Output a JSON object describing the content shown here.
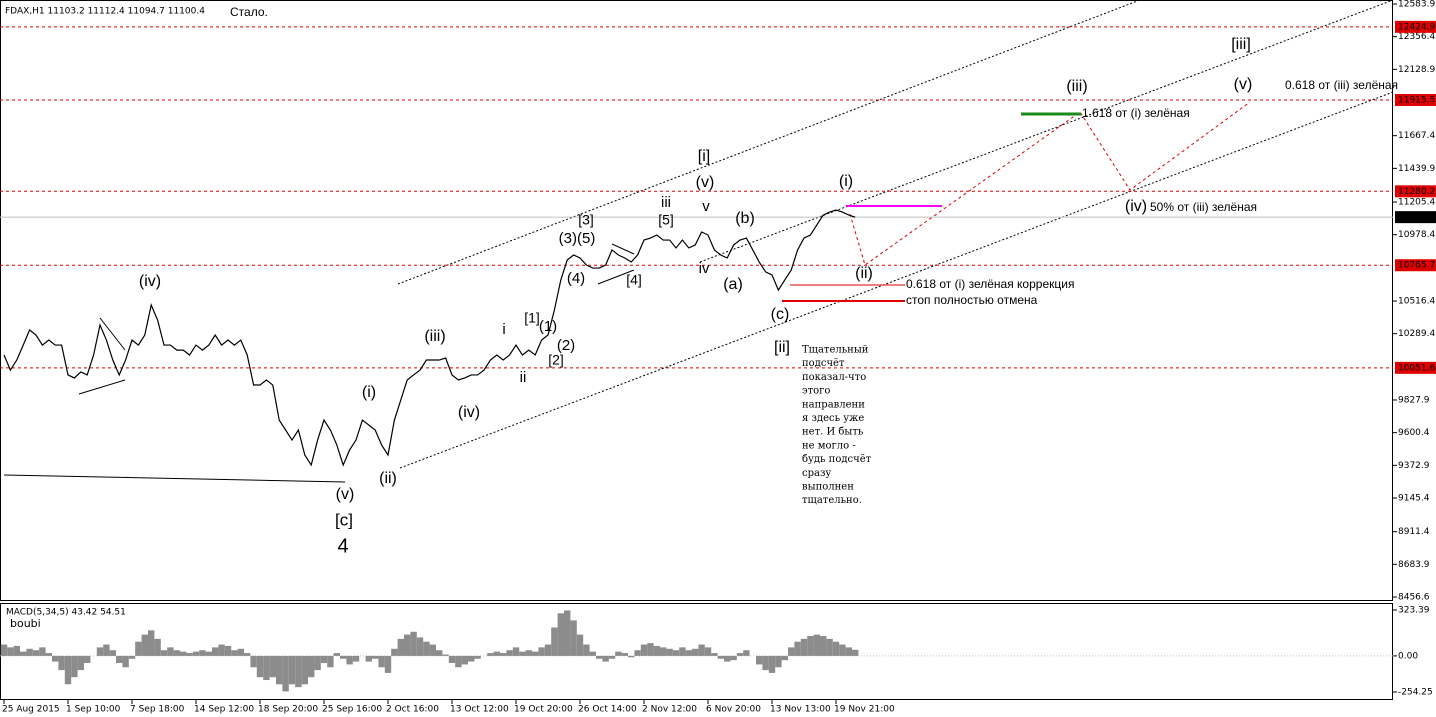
{
  "header": {
    "symbol": "FDAX,H1  11103.2 11112.4 11094.7 11100.4",
    "note": "Стало."
  },
  "chart_data": [
    {
      "type": "line",
      "color": "#000000",
      "categories": [
        "25 Aug 2015",
        null,
        null,
        null,
        null,
        null,
        null,
        null,
        null,
        null,
        "1 Sep 10:00",
        null,
        null,
        null,
        null,
        null,
        null,
        null,
        null,
        null,
        "7 Sep 18:00",
        null,
        null,
        null,
        null,
        null,
        null,
        null,
        null,
        null,
        "14 Sep 12:00",
        null,
        null,
        null,
        null,
        null,
        null,
        null,
        null,
        null,
        "18 Sep 20:00",
        null,
        null,
        null,
        null,
        null,
        null,
        null,
        null,
        null,
        "25 Sep 16:00",
        null,
        null,
        null,
        null,
        null,
        null,
        null,
        null,
        null,
        "2 Oct 16:00",
        null,
        null,
        null,
        null,
        null,
        null,
        null,
        null,
        null,
        "13 Oct 12:00",
        null,
        null,
        null,
        null,
        null,
        null,
        null,
        null,
        null,
        "19 Oct 20:00",
        null,
        null,
        null,
        null,
        null,
        null,
        null,
        null,
        null,
        "26 Oct 14:00",
        null,
        null,
        null,
        null,
        null,
        null,
        null,
        null,
        null,
        "2 Nov 12:00",
        null,
        null,
        null,
        null,
        null,
        null,
        null,
        null,
        null,
        "6 Nov 20:00",
        null,
        null,
        null,
        null,
        null,
        null,
        null,
        null,
        null,
        "13 Nov 13:00",
        null,
        null,
        null,
        null,
        null,
        null,
        null,
        null,
        null,
        "19 Nov 21:00",
        null,
        null,
        null
      ],
      "values": [
        10141,
        10036,
        10106,
        10210,
        10315,
        10280,
        10210,
        10245,
        10210,
        10210,
        10002,
        9981,
        10023,
        10002,
        10141,
        10350,
        10245,
        10106,
        10002,
        10106,
        10245,
        10210,
        10280,
        10489,
        10384,
        10210,
        10210,
        10175,
        10175,
        10141,
        10210,
        10175,
        10210,
        10280,
        10210,
        10245,
        10210,
        10245,
        10141,
        9932,
        9932,
        9967,
        9932,
        9688,
        9619,
        9549,
        9619,
        9445,
        9375,
        9549,
        9688,
        9619,
        9515,
        9375,
        9480,
        9549,
        9688,
        9654,
        9619,
        9515,
        9445,
        9688,
        9828,
        9967,
        10002,
        10036,
        10106,
        10106,
        10106,
        10120,
        10002,
        9967,
        9981,
        10002,
        10002,
        10036,
        10106,
        10141,
        10106,
        10141,
        10210,
        10141,
        10175,
        10141,
        10245,
        10280,
        10454,
        10663,
        10802,
        10837,
        10816,
        10767,
        10746,
        10746,
        10767,
        10872,
        10837,
        10816,
        10788,
        10837,
        10941,
        10955,
        10976,
        10941,
        10941,
        10886,
        10941,
        10886,
        10906,
        10997,
        10976,
        10872,
        10837,
        10816,
        10906,
        10941,
        10955,
        10872,
        10788,
        10719,
        10698,
        10593,
        10663,
        10732,
        10872,
        10955,
        10976,
        11046,
        11115,
        11136,
        11150,
        11136,
        11115,
        11100.4
      ],
      "ylim": [
        8428.8,
        12611.7
      ],
      "yticks": [
        12583.9,
        12356.4,
        12128.9,
        11667.4,
        11439.9,
        11205.4,
        10978.4,
        10516.4,
        10289.4,
        9827.9,
        9600.4,
        9372.9,
        9145.4,
        8911.4,
        8683.9,
        8456.6
      ],
      "levels": [
        12424.9,
        11915.5,
        11280.2,
        10765.7,
        10051.6
      ],
      "level_color": "#e00000",
      "current_price": 11100.4,
      "annotations": [
        {
          "text": "(iv)",
          "color": "#1a8a1a"
        },
        {
          "text": "(i)",
          "color": "#1a8a1a"
        },
        {
          "text": "(iii)",
          "color": "#1a8a1a"
        },
        {
          "text": "(iv)",
          "color": "#1a8a1a"
        },
        {
          "text": "(v)",
          "color": "#1a8a1a"
        },
        {
          "text": "[c]",
          "color": "#e00000"
        },
        {
          "text": "4",
          "color": "#0000cc"
        },
        {
          "text": "(ii)",
          "color": "#1a8a1a"
        },
        {
          "text": "i",
          "color": "#0000cc"
        },
        {
          "text": "ii",
          "color": "#0000cc"
        },
        {
          "text": "[1]",
          "color": "#e00000"
        },
        {
          "text": "(1)",
          "color": "#1a8a1a"
        },
        {
          "text": "(2)",
          "color": "#1a8a1a"
        },
        {
          "text": "[2]",
          "color": "#e00000"
        },
        {
          "text": "(3)(5)",
          "color": "#1a8a1a"
        },
        {
          "text": "[3]",
          "color": "#e00000"
        },
        {
          "text": "(4)",
          "color": "#1a8a1a"
        },
        {
          "text": "[4]",
          "color": "#e00000"
        },
        {
          "text": "iii",
          "color": "#0000cc"
        },
        {
          "text": "[5]",
          "color": "#e00000"
        },
        {
          "text": "[i]",
          "color": "#e00000"
        },
        {
          "text": "(v)",
          "color": "#1a8a1a"
        },
        {
          "text": "v",
          "color": "#0000cc"
        },
        {
          "text": "iv",
          "color": "#0000cc"
        },
        {
          "text": "(b)",
          "color": "#1a8a1a"
        },
        {
          "text": "(a)",
          "color": "#1a8a1a"
        },
        {
          "text": "(c)",
          "color": "#1a8a1a"
        },
        {
          "text": "[ii]",
          "color": "#e00000"
        },
        {
          "text": "(i)",
          "color": "#1a8a1a"
        },
        {
          "text": "(ii)",
          "color": "#1a8a1a"
        },
        {
          "text": "(iii)",
          "color": "#1a8a1a"
        },
        {
          "text": "[iii]",
          "color": "#e00000"
        },
        {
          "text": "(v)",
          "color": "#1a8a1a"
        },
        {
          "text": "0.618 от (iii) зелёная",
          "color": "#000000"
        },
        {
          "text": "1.618 от (i) зелёная",
          "color": "#000000"
        },
        {
          "text": "(iv)",
          "color": "#1a8a1a"
        },
        {
          "text": "50% от (iii) зелёная",
          "color": "#000000"
        },
        {
          "text": "0.618 от (i) зелёная коррекция",
          "color": "#000000"
        },
        {
          "text": "стоп полностью отмена",
          "color": "#000000"
        }
      ],
      "comment": [
        "Тщательный",
        "подсчёт",
        "показал-что",
        "этого",
        "направлени",
        "я здесь уже",
        "нет. И быть",
        "не могло -",
        "будь подсчёт",
        "сразу",
        "выполнен",
        "тщательно."
      ]
    },
    {
      "type": "bar",
      "title": "MACD(5,34,5) 43.42 54.51",
      "subtitle": "boubi",
      "color": "#8c8c8c",
      "values": [
        80,
        60,
        70,
        30,
        50,
        40,
        60,
        20,
        -40,
        -100,
        -200,
        -150,
        -100,
        -50,
        0,
        60,
        80,
        40,
        -50,
        -80,
        -20,
        100,
        150,
        180,
        120,
        40,
        60,
        40,
        30,
        20,
        30,
        40,
        30,
        60,
        80,
        70,
        40,
        50,
        20,
        -80,
        -150,
        -170,
        -150,
        -200,
        -250,
        -200,
        -220,
        -200,
        -150,
        -100,
        -50,
        -80,
        20,
        -20,
        -60,
        -40,
        0,
        -40,
        -20,
        -80,
        -120,
        50,
        120,
        150,
        170,
        130,
        100,
        80,
        40,
        10,
        -50,
        -80,
        -60,
        -40,
        -20,
        0,
        20,
        30,
        20,
        40,
        60,
        30,
        40,
        30,
        60,
        80,
        200,
        300,
        320,
        250,
        150,
        80,
        30,
        -20,
        -40,
        -20,
        30,
        20,
        -10,
        40,
        80,
        90,
        70,
        60,
        50,
        40,
        60,
        40,
        50,
        80,
        60,
        20,
        -20,
        -40,
        -30,
        20,
        40,
        0,
        -60,
        -100,
        -120,
        -80,
        -30,
        60,
        100,
        120,
        140,
        150,
        140,
        120,
        100,
        80,
        60,
        43
      ],
      "ylim": [
        -310.7,
        365.6
      ],
      "yticks": [
        323.39,
        {
          "value": 0,
          "label": "0.00"
        },
        -254.25
      ]
    }
  ]
}
